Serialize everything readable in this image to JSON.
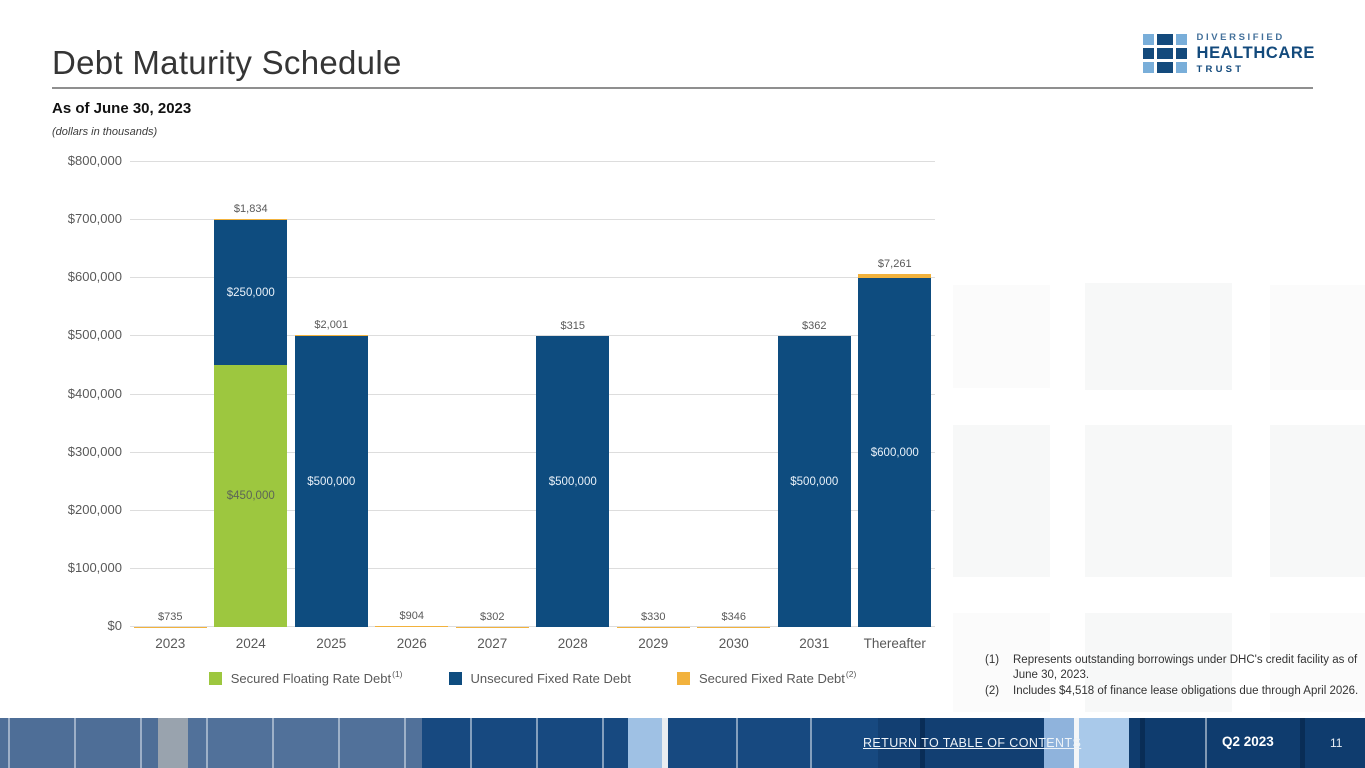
{
  "slide": {
    "title": "Debt Maturity Schedule",
    "subtitle": "As of June 30, 2023",
    "units_note": "(dollars in thousands)",
    "footer_link": "RETURN TO TABLE OF CONTENTS",
    "quarter_label": "Q2 2023",
    "page_number": "11"
  },
  "logo": {
    "line1": "DIVERSIFIED",
    "line2": "HEALTHCARE",
    "line3": "TRUST",
    "dark_blue": "#134A7C",
    "light_blue": "#79AED9",
    "diversified_color": "#44719B",
    "grid_pattern": [
      "light",
      "dark",
      "light",
      "dark",
      "dark",
      "dark",
      "light",
      "dark",
      "light"
    ]
  },
  "footnotes": [
    {
      "num": "(1)",
      "text": "Represents outstanding borrowings under DHC's credit facility as of June 30, 2023."
    },
    {
      "num": "(2)",
      "text": "Includes $4,518 of finance lease obligations due through April 2026."
    }
  ],
  "chart_data": {
    "type": "bar",
    "stacked": true,
    "title": "Debt Maturity Schedule",
    "xlabel": "",
    "ylabel": "dollars in thousands",
    "ylim": [
      0,
      800000
    ],
    "grid": true,
    "legend_position": "bottom",
    "categories": [
      "2023",
      "2024",
      "2025",
      "2026",
      "2027",
      "2028",
      "2029",
      "2030",
      "2031",
      "Thereafter"
    ],
    "y_ticks": [
      "$0",
      "$100,000",
      "$200,000",
      "$300,000",
      "$400,000",
      "$500,000",
      "$600,000",
      "$700,000",
      "$800,000"
    ],
    "series": [
      {
        "name": "Secured Floating Rate Debt",
        "footnote": "(1)",
        "color": "#9DC73F",
        "inside_label_color": "#5d6557",
        "values": [
          0,
          450000,
          0,
          0,
          0,
          0,
          0,
          0,
          0,
          0
        ]
      },
      {
        "name": "Unsecured Fixed Rate Debt",
        "footnote": "",
        "color": "#0E4C7F",
        "inside_label_color": "#e9f1f9",
        "values": [
          0,
          250000,
          500000,
          0,
          0,
          500000,
          0,
          0,
          500000,
          600000
        ]
      },
      {
        "name": "Secured Fixed Rate Debt",
        "footnote": "(2)",
        "color": "#F2B23D",
        "inside_label_color": "#5d6557",
        "values": [
          735,
          1834,
          2001,
          904,
          302,
          315,
          330,
          346,
          362,
          7261
        ]
      }
    ],
    "top_labels": [
      "$735",
      "$1,834",
      "$2,001",
      "$904",
      "$302",
      "$315",
      "$330",
      "$346",
      "$362",
      "$7,261"
    ],
    "inside_label_min": 100000
  }
}
